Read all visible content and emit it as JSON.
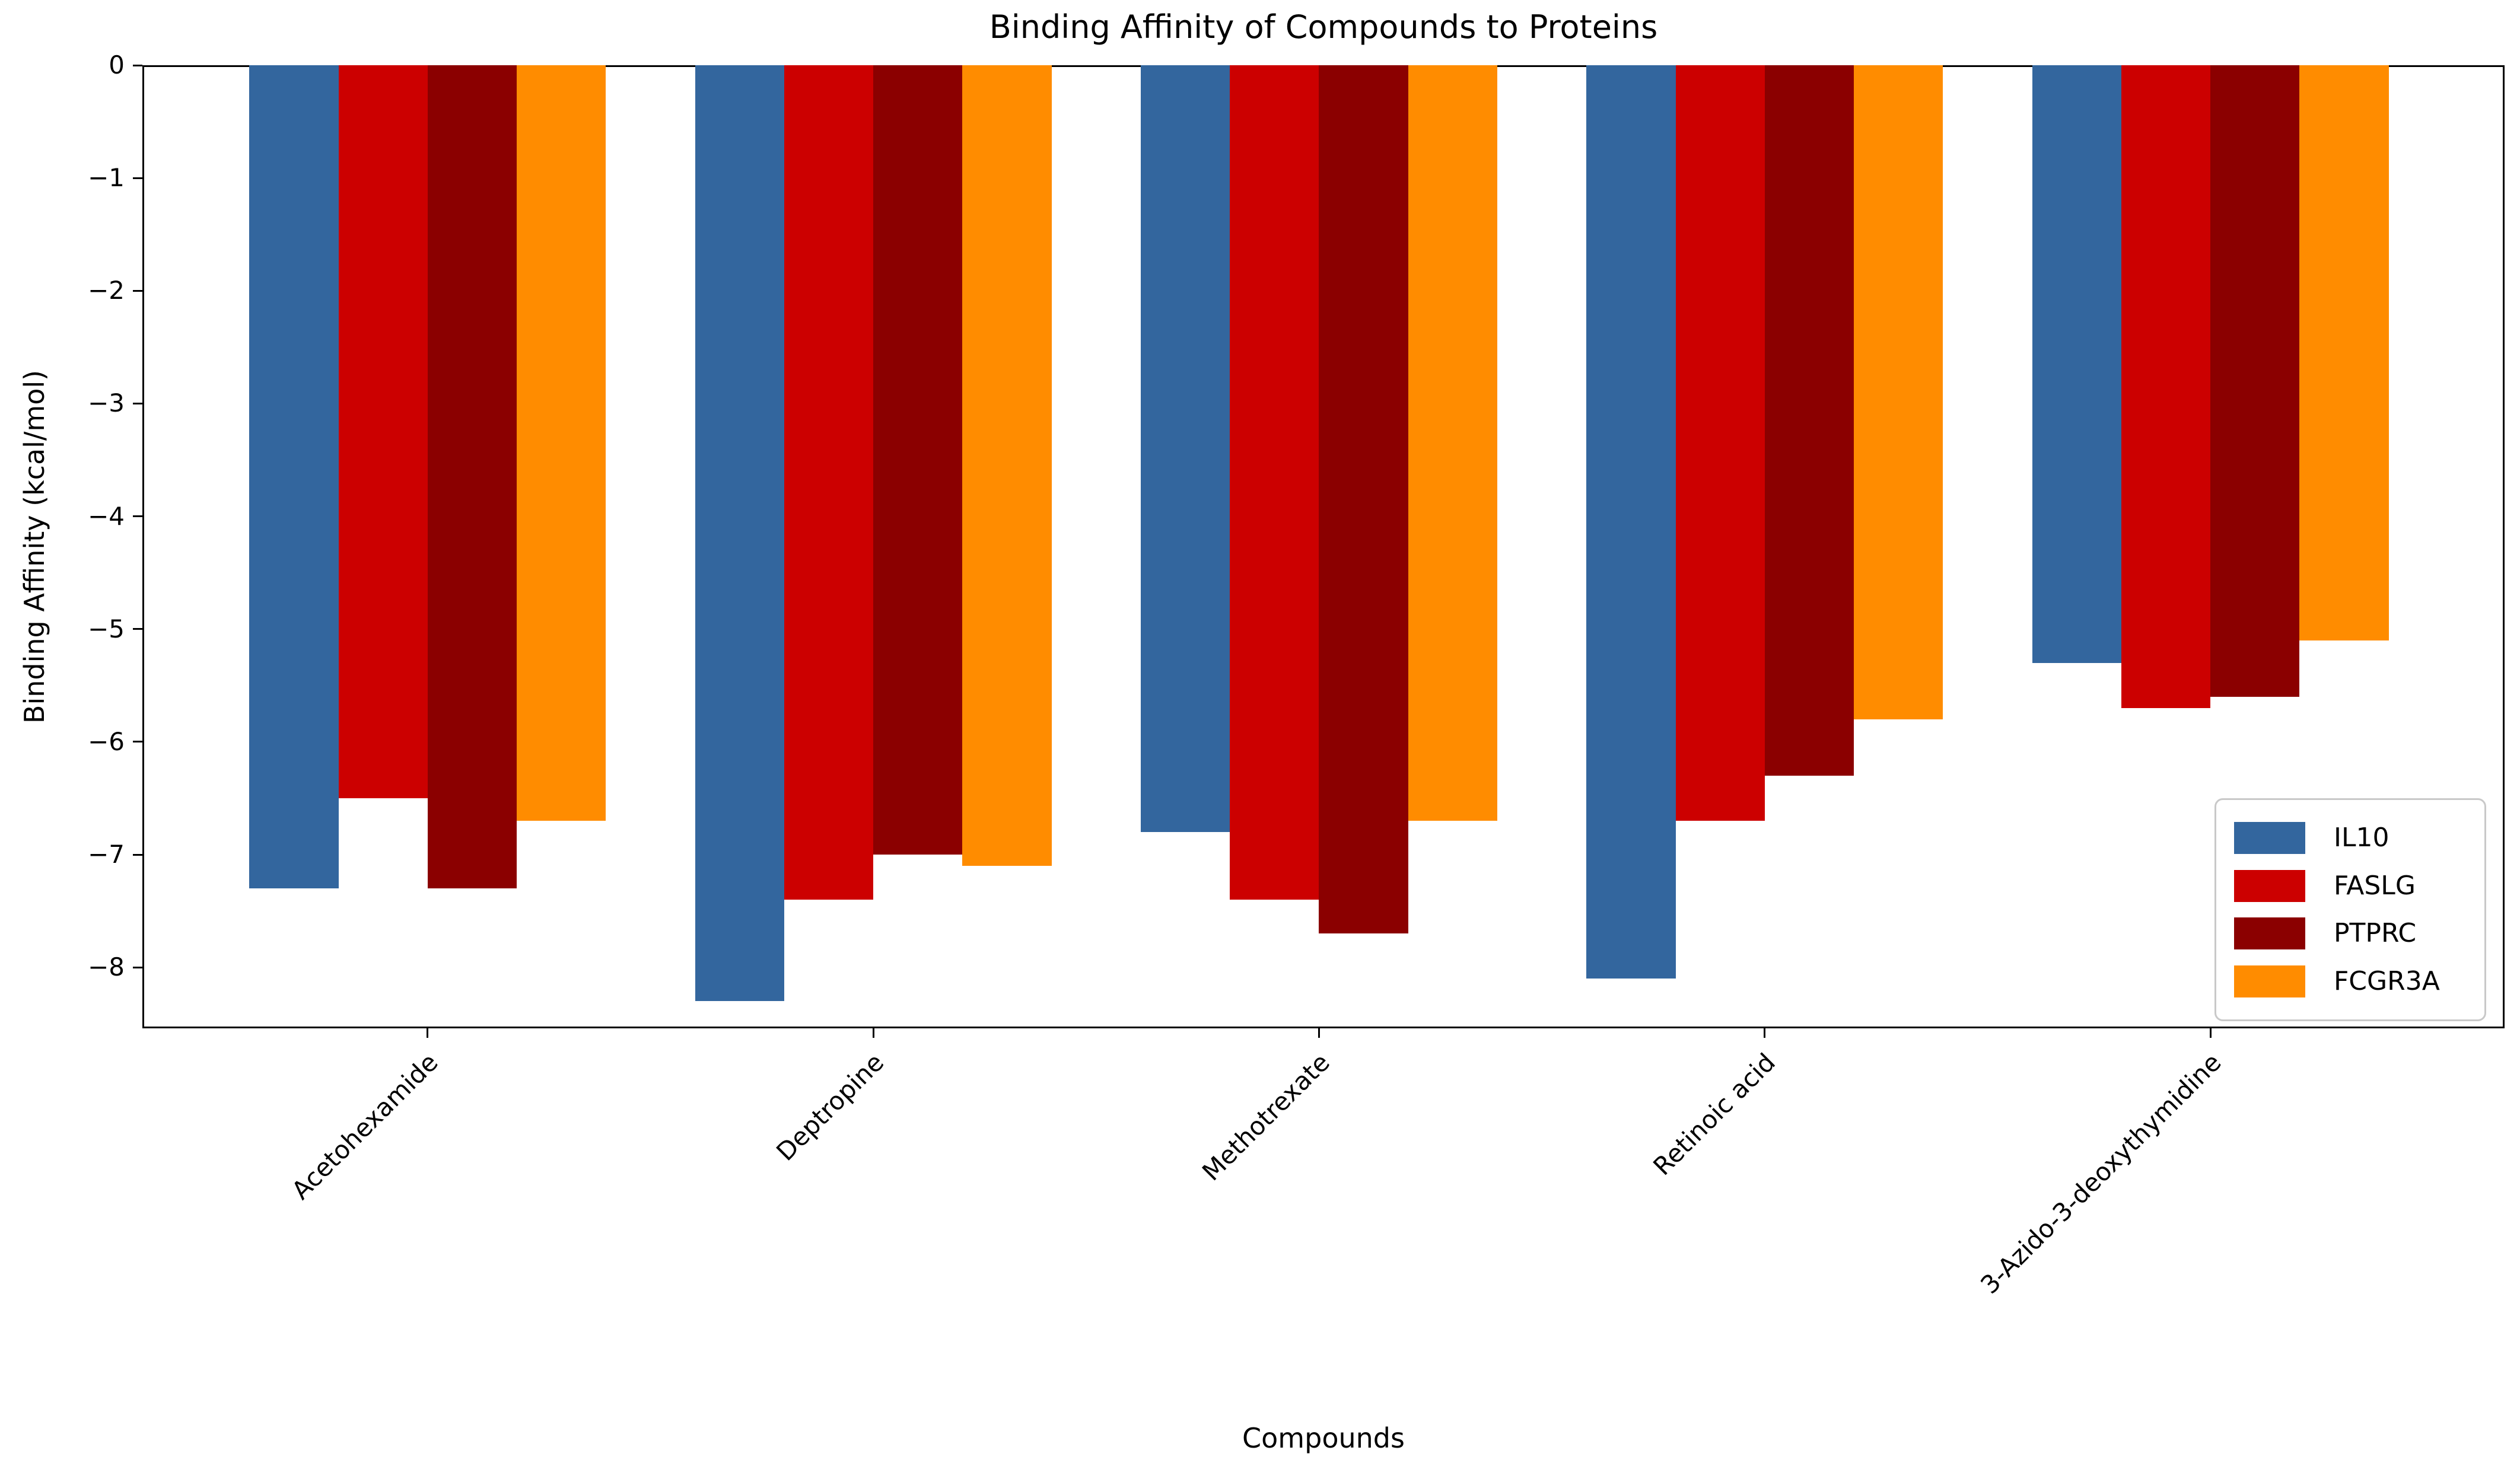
{
  "chart_data": {
    "type": "bar",
    "title": "Binding Affinity of Compounds to Proteins",
    "xlabel": "Compounds",
    "ylabel": "Binding Affinity (kcal/mol)",
    "categories": [
      "Acetohexamide",
      "Deptropine",
      "Methotrexate",
      "Retinoic acid",
      "3-Azido-3-deoxythymidine"
    ],
    "series": [
      {
        "name": "IL10",
        "color": "#33669E",
        "values": [
          -7.3,
          -8.3,
          -6.8,
          -8.1,
          -5.3
        ]
      },
      {
        "name": "FASLG",
        "color": "#CC0000",
        "values": [
          -6.5,
          -7.4,
          -7.4,
          -6.7,
          -5.7
        ]
      },
      {
        "name": "PTPRC",
        "color": "#8B0000",
        "values": [
          -7.3,
          -7.0,
          -7.7,
          -6.3,
          -5.6
        ]
      },
      {
        "name": "FCGR3A",
        "color": "#FF8C00",
        "values": [
          -6.7,
          -7.1,
          -6.7,
          -5.8,
          -5.1
        ]
      }
    ],
    "y_ticks": [
      0,
      -1,
      -2,
      -3,
      -4,
      -5,
      -6,
      -7,
      -8
    ],
    "y_tick_labels": [
      "0",
      "−1",
      "−2",
      "−3",
      "−4",
      "−5",
      "−6",
      "−7",
      "−8"
    ],
    "ylim": [
      -8.54,
      0
    ],
    "xlim": [
      -0.64,
      4.66
    ],
    "bar_width": 0.2,
    "group_width": 0.8,
    "grid": false,
    "legend_position": "lower right",
    "x_tick_label_rotation_deg": 45,
    "axis_color": "#000000",
    "background_color": "#ffffff"
  }
}
